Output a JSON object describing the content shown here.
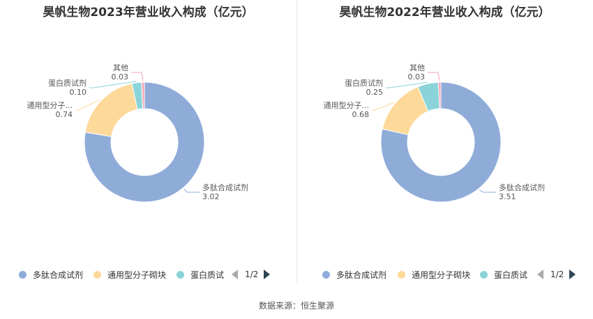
{
  "chart_data": [
    {
      "type": "pie",
      "title": "昊帆生物2023年营业收入构成（亿元）",
      "slices": [
        {
          "label": "多肽合成试剂",
          "value": 3.02,
          "display_label": "多肽合成试剂",
          "display_value": "3.02",
          "color": "#8facd9"
        },
        {
          "label": "通用型分子砌块",
          "value": 0.74,
          "display_label": "通用型分子...",
          "display_value": "0.74",
          "color": "#fdd99a"
        },
        {
          "label": "蛋白质试剂",
          "value": 0.1,
          "display_label": "蛋白质试剂",
          "display_value": "0.10",
          "color": "#8ad4d9"
        },
        {
          "label": "其他",
          "value": 0.03,
          "display_label": "其他",
          "display_value": "0.03",
          "color": "#f5a3b5"
        }
      ],
      "legend": {
        "items": [
          {
            "label": "多肽合成试剂",
            "color": "#8facd9"
          },
          {
            "label": "通用型分子砌块",
            "color": "#fdd99a"
          },
          {
            "label": "蛋白质试",
            "color": "#8ad4d9"
          }
        ],
        "page": "1/2",
        "position": "bottom"
      }
    },
    {
      "type": "pie",
      "title": "昊帆生物2022年营业收入构成（亿元）",
      "slices": [
        {
          "label": "多肽合成试剂",
          "value": 3.51,
          "display_label": "多肽合成试剂",
          "display_value": "3.51",
          "color": "#8facd9"
        },
        {
          "label": "通用型分子砌块",
          "value": 0.68,
          "display_label": "通用型分子...",
          "display_value": "0.68",
          "color": "#fdd99a"
        },
        {
          "label": "蛋白质试剂",
          "value": 0.25,
          "display_label": "蛋白质试剂",
          "display_value": "0.25",
          "color": "#8ad4d9"
        },
        {
          "label": "其他",
          "value": 0.03,
          "display_label": "其他",
          "display_value": "0.03",
          "color": "#f5a3b5"
        }
      ],
      "legend": {
        "items": [
          {
            "label": "多肽合成试剂",
            "color": "#8facd9"
          },
          {
            "label": "通用型分子砌块",
            "color": "#fdd99a"
          },
          {
            "label": "蛋白质试",
            "color": "#8ad4d9"
          }
        ],
        "page": "1/2",
        "position": "bottom"
      }
    }
  ],
  "footer": {
    "source": "数据来源：恒生聚源"
  }
}
